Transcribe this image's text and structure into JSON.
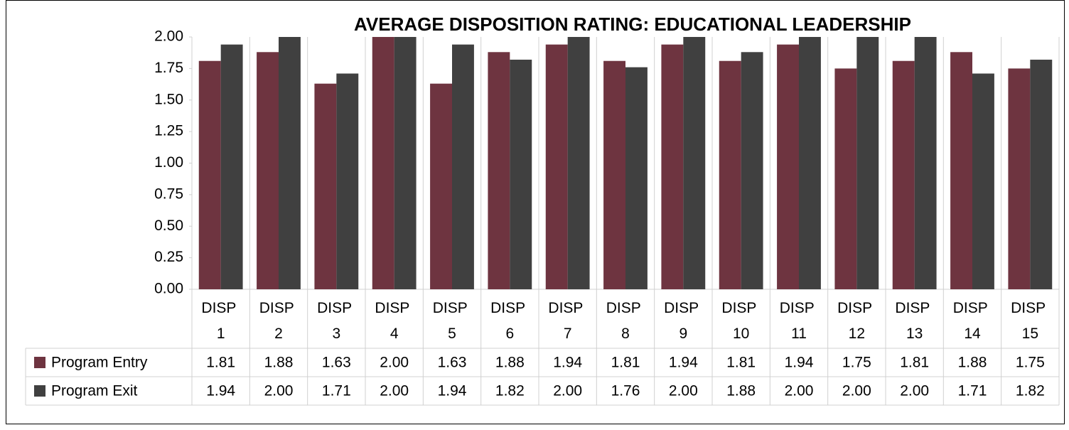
{
  "chart_data": {
    "type": "bar",
    "title": "AVERAGE DISPOSITION RATING: EDUCATIONAL LEADERSHIP",
    "categories": [
      "DISP 1",
      "DISP 2",
      "DISP 3",
      "DISP 4",
      "DISP 5",
      "DISP 6",
      "DISP 7",
      "DISP 8",
      "DISP 9",
      "DISP 10",
      "DISP 11",
      "DISP 12",
      "DISP 13",
      "DISP 14",
      "DISP 15"
    ],
    "series": [
      {
        "name": "Program Entry",
        "color": "#6e3440",
        "values": [
          1.81,
          1.88,
          1.63,
          2,
          1.63,
          1.88,
          1.94,
          1.81,
          1.94,
          1.81,
          1.94,
          1.75,
          1.81,
          1.88,
          1.75
        ],
        "value_labels": [
          "1.81",
          "1.88",
          "1.63",
          "2.00",
          "1.63",
          "1.88",
          "1.94",
          "1.81",
          "1.94",
          "1.81",
          "1.94",
          "1.75",
          "1.81",
          "1.88",
          "1.75"
        ]
      },
      {
        "name": "Program Exit",
        "color": "#404040",
        "values": [
          1.94,
          2,
          1.71,
          2,
          1.94,
          1.82,
          2,
          1.76,
          2,
          1.88,
          2,
          2,
          2,
          1.71,
          1.82
        ],
        "value_labels": [
          "1.94",
          "2.00",
          "1.71",
          "2.00",
          "1.94",
          "1.82",
          "2.00",
          "1.76",
          "2.00",
          "1.88",
          "2.00",
          "2.00",
          "2.00",
          "1.71",
          "1.82"
        ]
      }
    ],
    "ylim": [
      0,
      2
    ],
    "yticks": [
      {
        "value": 0,
        "label": "0.00"
      },
      {
        "value": 0.25,
        "label": "0.25"
      },
      {
        "value": 0.5,
        "label": "0.50"
      },
      {
        "value": 0.75,
        "label": "0.75"
      },
      {
        "value": 1,
        "label": "1.00"
      },
      {
        "value": 1.25,
        "label": "1.25"
      },
      {
        "value": 1.5,
        "label": "1.50"
      },
      {
        "value": 1.75,
        "label": "1.75"
      },
      {
        "value": 2,
        "label": "2.00"
      }
    ],
    "grid": false
  }
}
